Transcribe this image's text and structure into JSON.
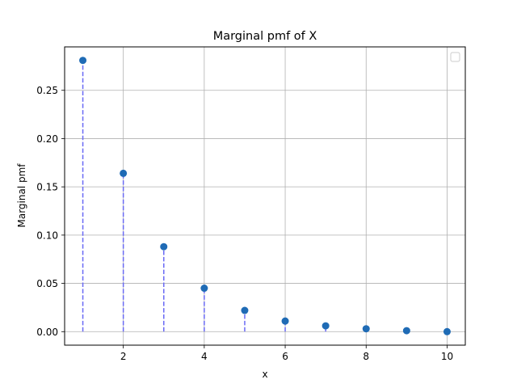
{
  "chart_data": {
    "type": "scatter",
    "title": "Marginal pmf of X",
    "xlabel": "x",
    "ylabel": "Marginal pmf",
    "x": [
      1,
      2,
      3,
      4,
      5,
      6,
      7,
      8,
      9,
      10
    ],
    "y": [
      0.281,
      0.164,
      0.088,
      0.045,
      0.022,
      0.011,
      0.006,
      0.003,
      0.001,
      0.0
    ],
    "xlim": [
      0.55,
      10.45
    ],
    "ylim": [
      -0.014,
      0.295
    ],
    "xticks": [
      2,
      4,
      6,
      8,
      10
    ],
    "xtick_labels": [
      "2",
      "4",
      "6",
      "8",
      "10"
    ],
    "yticks": [
      0.0,
      0.05,
      0.1,
      0.15,
      0.2,
      0.25
    ],
    "ytick_labels": [
      "0.00",
      "0.05",
      "0.10",
      "0.15",
      "0.20",
      "0.25"
    ],
    "grid": true,
    "legend": "top-right (empty)",
    "stems": "dashed vertical lines from 0 to each point",
    "colors": {
      "marker": "#1f6bb5",
      "stem": "#6a6af5",
      "grid": "#b0b0b0",
      "axes": "#000000"
    }
  }
}
